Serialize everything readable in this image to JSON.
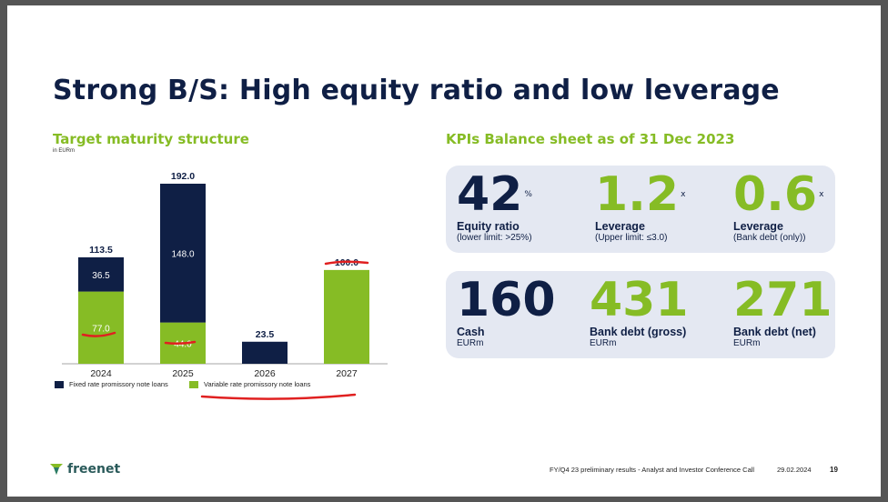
{
  "title": "Strong B/S: High equity ratio and low leverage",
  "chart_title": "Target maturity structure",
  "chart_unit": "in EURm",
  "colors": {
    "navy": "#0f1f45",
    "green": "#86bc25",
    "annotation": "#e02020"
  },
  "chart_data": {
    "type": "bar",
    "stacked": true,
    "categories": [
      "2024",
      "2025",
      "2026",
      "2027"
    ],
    "series": [
      {
        "name": "Variable rate promissory note loans",
        "color": "#86bc25",
        "values": [
          77.0,
          44.0,
          0,
          100.0
        ],
        "labels": [
          "77.0",
          "44.0",
          "",
          ""
        ]
      },
      {
        "name": "Fixed rate promissory note loans",
        "color": "#0f1f45",
        "values": [
          36.5,
          148.0,
          23.5,
          0
        ],
        "labels": [
          "36.5",
          "148.0",
          "",
          ""
        ]
      }
    ],
    "totals": [
      "113.5",
      "192.0",
      "23.5",
      "100.0"
    ],
    "ylim": [
      0,
      192
    ]
  },
  "legend": {
    "fixed": "Fixed rate promissory note loans",
    "variable": "Variable rate promissory note loans"
  },
  "kpi_title": "KPIs Balance sheet as of 31 Dec 2023",
  "kpis_top": [
    {
      "value": "42",
      "suffix": "%",
      "label": "Equity ratio",
      "sub": "(lower limit: >25%)",
      "color": "navy"
    },
    {
      "value": "1.2",
      "suffix": "x",
      "label": "Leverage",
      "sub": "(Upper limit: ≤3.0)",
      "color": "green"
    },
    {
      "value": "0.6",
      "suffix": "x",
      "label": "Leverage",
      "sub": "(Bank debt (only))",
      "color": "green"
    }
  ],
  "kpis_bottom": [
    {
      "value": "160",
      "suffix": "",
      "label": "Cash",
      "sub": "EURm",
      "color": "navy"
    },
    {
      "value": "431",
      "suffix": "",
      "label": "Bank debt (gross)",
      "sub": "EURm",
      "color": "green"
    },
    {
      "value": "271",
      "suffix": "",
      "label": "Bank debt (net)",
      "sub": "EURm",
      "color": "green"
    }
  ],
  "footer": {
    "logo": "freenet",
    "text": "FY/Q4 23 preliminary results - Analyst and Investor Conference Call",
    "date": "29.02.2024",
    "page": "19"
  }
}
